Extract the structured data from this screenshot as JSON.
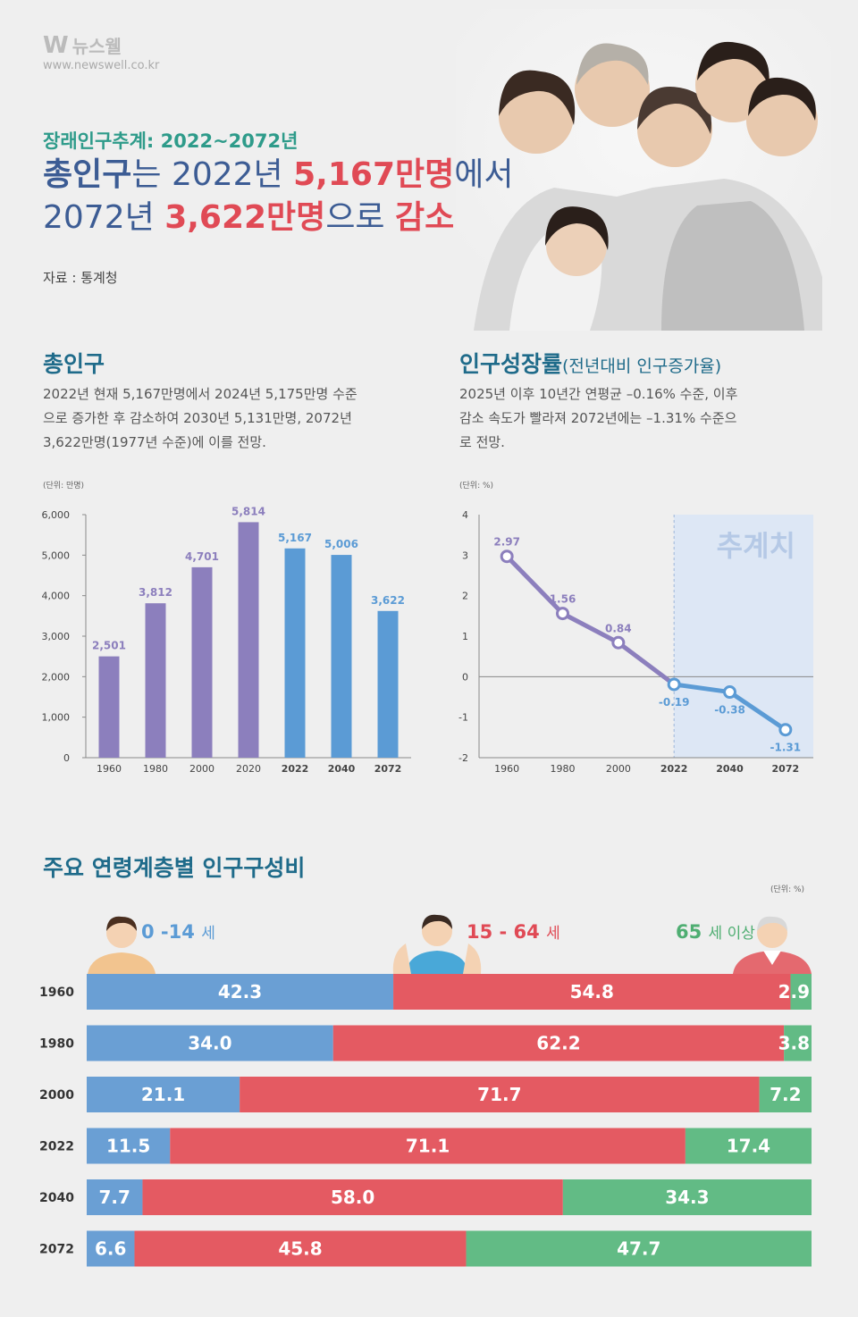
{
  "header": {
    "logo_mark": "W",
    "logo_name": "뉴스웰",
    "logo_url": "www.newswell.co.kr",
    "subtitle_prefix": "장래인구추계: ",
    "subtitle_years": "2022~2072년",
    "headline_line1_a": "총인구",
    "headline_line1_b": "는 2022년 ",
    "headline_line1_c": "5,167만명",
    "headline_line1_d": "에서",
    "headline_line2_a": "2072년 ",
    "headline_line2_b": "3,622만명",
    "headline_line2_c": "으로 ",
    "headline_line2_d": "감소",
    "source": "자료 : 통계청"
  },
  "section_total": {
    "title": "총인구",
    "desc1": "2022년 현재 5,167만명에서 2024년 5,175만명 수준",
    "desc2": "으로 증가한 후 감소하여 2030년 5,131만명, 2072년",
    "desc3": "3,622만명(1977년 수준)에 이를 전망.",
    "unit": "(단위: 만명)"
  },
  "section_growth": {
    "title": "인구성장률",
    "title_small": "(전년대비 인구증가율)",
    "desc1": "2025년 이후 10년간 연평균 –0.16% 수준, 이후",
    "desc2": "감소 속도가 빨라져 2072년에는 –1.31% 수준으",
    "desc3": "로 전망.",
    "unit": "(단위: %)",
    "projection_label": "추계치"
  },
  "section_age": {
    "title": "주요 연령계층별 인구구성비",
    "unit": "(단위: %)",
    "label_young_num": "0 -14",
    "label_young_unit": "세",
    "label_work_num": "15 - 64",
    "label_work_unit": "세",
    "label_old_num": "65",
    "label_old_unit": "세 이상"
  },
  "colors": {
    "purple": "#8c7fbd",
    "blue": "#5b9bd5",
    "young": "#6a9fd4",
    "work": "#e45a62",
    "old": "#62bb85",
    "projection_bg": "#dde7f5"
  },
  "chart_data": [
    {
      "type": "bar",
      "categories": [
        "1960",
        "1980",
        "2000",
        "2020",
        "2022",
        "2040",
        "2072"
      ],
      "values": [
        2501,
        3812,
        4701,
        5814,
        5167,
        5006,
        3622
      ],
      "value_labels": [
        "2,501",
        "3,812",
        "4,701",
        "5,814",
        "5,167",
        "5,006",
        "3,622"
      ],
      "yticks": [
        "0",
        "1,000",
        "2,000",
        "3,000",
        "4,000",
        "5,000",
        "6,000"
      ],
      "ylim": [
        0,
        6000
      ],
      "title": "총인구",
      "unit": "(단위: 만명)"
    },
    {
      "type": "line",
      "x": [
        "1960",
        "1980",
        "2000",
        "2022",
        "2040",
        "2072"
      ],
      "values": [
        2.97,
        1.56,
        0.84,
        -0.19,
        -0.38,
        -1.31
      ],
      "value_labels": [
        "2.97",
        "1.56",
        "0.84",
        "-0.19",
        "-0.38",
        "-1.31"
      ],
      "yticks": [
        "-2",
        "-1",
        "0",
        "1",
        "2",
        "3",
        "4"
      ],
      "ylim": [
        -2,
        4
      ],
      "projection_from": "2022",
      "title": "인구성장률",
      "unit": "(단위: %)"
    },
    {
      "type": "bar",
      "stacked": true,
      "horizontal": true,
      "categories": [
        "1960",
        "1980",
        "2000",
        "2022",
        "2040",
        "2072"
      ],
      "series": [
        {
          "name": "0 -14세",
          "values": [
            42.3,
            34.0,
            21.1,
            11.5,
            7.7,
            6.6
          ],
          "labels": [
            "42.3",
            "34.0",
            "21.1",
            "11.5",
            "7.7",
            "6.6"
          ]
        },
        {
          "name": "15 - 64세",
          "values": [
            54.8,
            62.2,
            71.7,
            71.1,
            58.0,
            45.8
          ],
          "labels": [
            "54.8",
            "62.2",
            "71.7",
            "71.1",
            "58.0",
            "45.8"
          ]
        },
        {
          "name": "65세 이상",
          "values": [
            2.9,
            3.8,
            7.2,
            17.4,
            34.3,
            47.7
          ],
          "labels": [
            "2.9",
            "3.8",
            "7.2",
            "17.4",
            "34.3",
            "47.7"
          ]
        }
      ],
      "title": "주요 연령계층별 인구구성비",
      "unit": "(단위: %)"
    }
  ]
}
